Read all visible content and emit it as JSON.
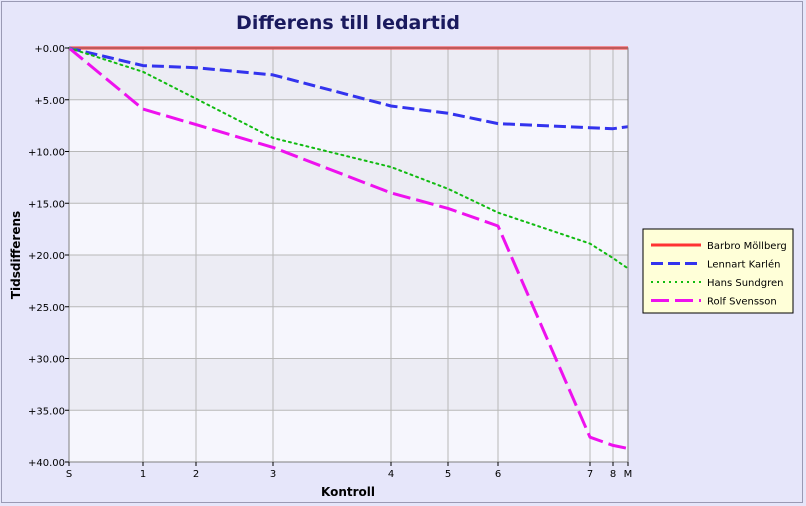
{
  "chart_data": {
    "type": "line",
    "title": "Differens till ledartid",
    "xlabel": "Kontroll",
    "ylabel": "Tidsdifferens",
    "x_ticks": [
      "S",
      "1",
      "2",
      "3",
      "4",
      "5",
      "6",
      "7",
      "8",
      "M"
    ],
    "y_ticks": [
      "+0.00",
      "+5.00",
      "+10.00",
      "+15.00",
      "+20.00",
      "+25.00",
      "+30.00",
      "+35.00",
      "+40.00"
    ],
    "ylim": [
      0,
      40
    ],
    "y_inverted": true,
    "grid": true,
    "legend_position": "right",
    "series": [
      {
        "name": "Barbro Möllberg",
        "color": "#ff3333",
        "style": "solid",
        "values": [
          0,
          0,
          0,
          0,
          0,
          0,
          0,
          0,
          0,
          0
        ]
      },
      {
        "name": "Lennart Karlén",
        "color": "#3333ee",
        "style": "dashed",
        "values": [
          0,
          1.7,
          1.9,
          2.6,
          5.6,
          6.3,
          7.3,
          7.7,
          7.8,
          7.6
        ]
      },
      {
        "name": "Hans Sundgren",
        "color": "#11bb11",
        "style": "dotted",
        "values": [
          0,
          2.3,
          4.9,
          8.7,
          11.5,
          13.6,
          15.9,
          18.9,
          20.3,
          21.3
        ]
      },
      {
        "name": "Rolf Svensson",
        "color": "#ee11ee",
        "style": "longdash",
        "values": [
          0,
          5.9,
          7.4,
          9.6,
          14.0,
          15.5,
          17.2,
          37.6,
          38.4,
          38.7
        ]
      }
    ]
  }
}
